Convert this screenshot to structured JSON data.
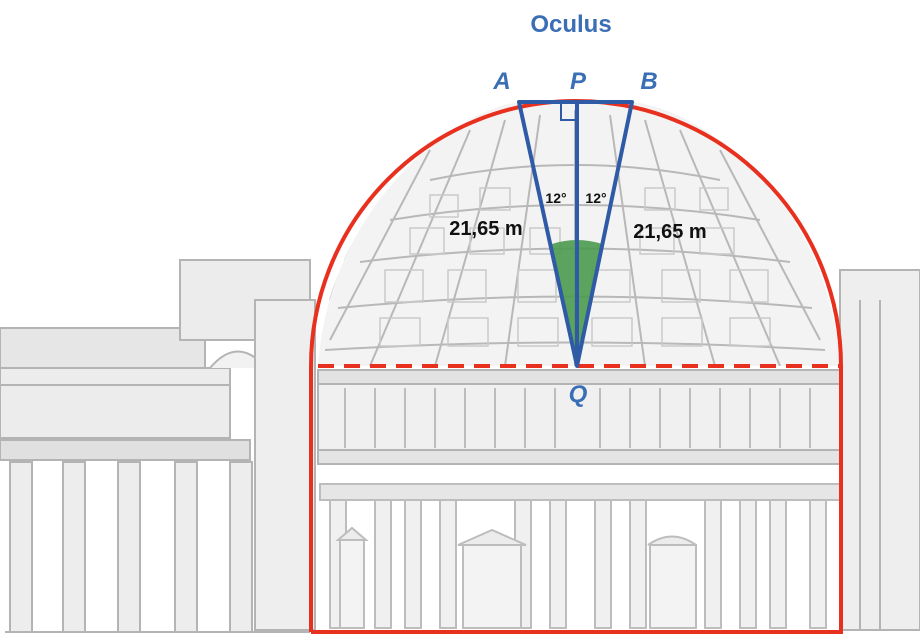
{
  "labels": {
    "title": "Oculus",
    "point_a": "A",
    "point_p": "P",
    "point_b": "B",
    "point_q": "Q",
    "length_left": "21,65 m",
    "length_right": "21,65 m",
    "angle_left": "12°",
    "angle_right": "12°"
  },
  "colors": {
    "blue": "#2f5aa5",
    "label_blue": "#3a6eb5",
    "red": "#e8301f",
    "green": "#4a9a4e",
    "building_gray": "#b4b4b4"
  },
  "icons": [
    "building-elevation",
    "right-angle-marker",
    "angle-arc"
  ]
}
